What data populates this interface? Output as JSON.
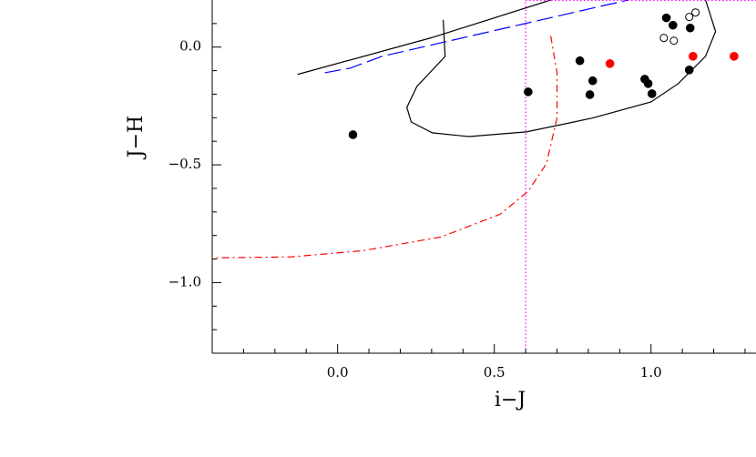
{
  "chart_data": {
    "type": "scatter",
    "xlabel": "i−J",
    "ylabel": "J−H",
    "xlim": [
      -0.4,
      1.335
    ],
    "ylim": [
      -1.3,
      0.2
    ],
    "xticks": [
      {
        "value": 0,
        "label": "0.0"
      },
      0.5,
      {
        "value": 1,
        "label": "1.0"
      }
    ],
    "yticks": [
      {
        "value": -1,
        "label": "−1.0"
      },
      {
        "value": -0.5,
        "label": "−0.5"
      },
      {
        "value": 0,
        "label": "0.0"
      }
    ],
    "xminorticks": [
      -0.3,
      -0.2,
      -0.1,
      0.1,
      0.2,
      0.3,
      0.4,
      0.6,
      0.7,
      0.8,
      0.9,
      1.1,
      1.2,
      1.3
    ],
    "yminorticks": [
      -1.2,
      -1.1,
      -0.9,
      -0.8,
      -0.7,
      -0.6,
      -0.4,
      -0.3,
      -0.2,
      -0.1,
      0.1
    ],
    "series": [
      {
        "color": "#000000",
        "marker": "filled",
        "x": [
          0.049,
          0.608,
          0.773,
          0.814,
          0.805,
          0.98,
          0.991,
          1.003,
          1.049,
          1.07,
          1.125,
          1.122
        ],
        "values": [
          -0.372,
          -0.19,
          -0.058,
          -0.143,
          -0.202,
          -0.136,
          -0.155,
          -0.198,
          0.124,
          0.093,
          0.081,
          -0.097
        ]
      },
      {
        "color": "#000000",
        "marker": "open",
        "x": [
          1.041,
          1.073,
          1.122,
          1.142
        ],
        "values": [
          0.039,
          0.027,
          0.128,
          0.147
        ]
      },
      {
        "color": "#ff0000",
        "marker": "filled",
        "x": [
          0.869,
          1.134,
          1.265
        ],
        "values": [
          -0.07,
          -0.039,
          -0.039
        ]
      }
    ],
    "lines": [
      {
        "color": "#000000",
        "dash": "solid",
        "x": [
          -0.128,
          0.3,
          0.68
        ],
        "values": [
          -0.116,
          0.04,
          0.2
        ]
      },
      {
        "color": "#000000",
        "dash": "solid",
        "x": [
          0.337,
          0.343,
          0.253,
          0.221,
          0.235,
          0.302,
          0.419,
          0.602,
          0.811,
          1.0,
          1.087,
          1.174,
          1.206,
          1.183,
          1.174
        ],
        "values": [
          0.116,
          -0.04,
          -0.167,
          -0.256,
          -0.318,
          -0.364,
          -0.38,
          -0.36,
          -0.302,
          -0.233,
          -0.155,
          -0.039,
          0.066,
          0.163,
          0.2
        ]
      },
      {
        "color": "#0000ff",
        "dash": "dashed",
        "x": [
          -0.041,
          0.041,
          0.142,
          0.549,
          0.927
        ],
        "values": [
          -0.109,
          -0.089,
          -0.039,
          0.085,
          0.2
        ]
      },
      {
        "color": "#ff0000",
        "dash": "dashdot",
        "x": [
          0.68,
          0.7,
          0.7,
          0.666,
          0.608,
          0.52,
          0.331,
          0.084,
          -0.148,
          -0.4
        ],
        "values": [
          0.047,
          -0.109,
          -0.302,
          -0.496,
          -0.612,
          -0.709,
          -0.806,
          -0.864,
          -0.891,
          -0.895
        ]
      },
      {
        "color": "#ff00ff",
        "dash": "dotted",
        "x": [
          0.6,
          0.6
        ],
        "values": [
          -1.3,
          0.2
        ]
      },
      {
        "color": "#ff00ff",
        "dash": "dotted",
        "x": [
          0.6,
          1.335
        ],
        "values": [
          0.198,
          0.198
        ]
      }
    ]
  }
}
